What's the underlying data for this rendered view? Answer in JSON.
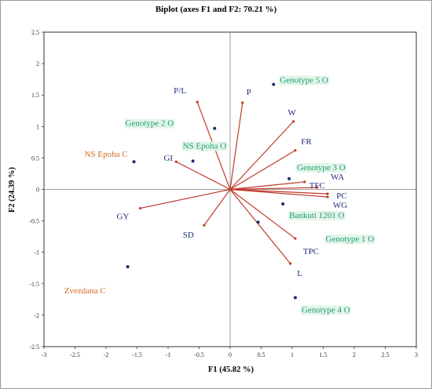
{
  "chart_data": {
    "type": "scatter",
    "title": "Biplot (axes F1 and F2: 70.21 %)",
    "xlabel": "F1 (45.82 %)",
    "ylabel": "F2 (24.39 %)",
    "xlim": [
      -3,
      3
    ],
    "ylim": [
      -2.5,
      2.5
    ],
    "xticks": [
      "-3",
      "-2.5",
      "-2",
      "-1.5",
      "-1",
      "-0.5",
      "0",
      "0.5",
      "1",
      "1.5",
      "2",
      "2.5",
      "3"
    ],
    "yticks": [
      "-2.5",
      "-2",
      "-1.5",
      "-1",
      "-0.5",
      "0",
      "0.5",
      "1",
      "1.5",
      "2",
      "2.5"
    ],
    "grid": false,
    "variables": [
      {
        "label": "P/L",
        "x": -0.53,
        "y": 1.39
      },
      {
        "label": "P",
        "x": 0.2,
        "y": 1.38
      },
      {
        "label": "W",
        "x": 1.02,
        "y": 1.08
      },
      {
        "label": "FR",
        "x": 1.05,
        "y": 0.62
      },
      {
        "label": "GI",
        "x": -0.87,
        "y": 0.44
      },
      {
        "label": "TFC",
        "x": 1.2,
        "y": 0.12
      },
      {
        "label": "WA",
        "x": 1.4,
        "y": 0.03
      },
      {
        "label": "PC",
        "x": 1.57,
        "y": -0.07
      },
      {
        "label": "WG",
        "x": 1.57,
        "y": -0.12
      },
      {
        "label": "GY",
        "x": -1.45,
        "y": -0.3
      },
      {
        "label": "SD",
        "x": -0.42,
        "y": -0.57
      },
      {
        "label": "TPC",
        "x": 1.05,
        "y": -0.78
      },
      {
        "label": "L",
        "x": 0.97,
        "y": -1.18
      }
    ],
    "observations": [
      {
        "label": "Genotype 5 O",
        "x": 0.7,
        "y": 1.67,
        "group": "O"
      },
      {
        "label": "Genotype 2 O",
        "x": -0.25,
        "y": 0.97,
        "group": "O"
      },
      {
        "label": "NS Epoha O",
        "x": -0.6,
        "y": 0.45,
        "group": "O"
      },
      {
        "label": "NS Epoha C",
        "x": -1.55,
        "y": 0.44,
        "group": "C"
      },
      {
        "label": "Genotype 3 O",
        "x": 0.95,
        "y": 0.17,
        "group": "O"
      },
      {
        "label": "Bankuti 1201 O",
        "x": 0.85,
        "y": -0.23,
        "group": "O"
      },
      {
        "label": "Genotype 1 O",
        "x": 0.45,
        "y": -0.52,
        "group": "O"
      },
      {
        "label": "Zvezdana C",
        "x": -1.65,
        "y": -1.23,
        "group": "C"
      },
      {
        "label": "Genotype 4 O",
        "x": 1.05,
        "y": -1.72,
        "group": "O"
      }
    ],
    "colors": {
      "vector": "#c0392b",
      "variable_text": "#1f2f7a",
      "point": "#1a2b6d",
      "group_O_text": "#1e9e6a",
      "group_O_bg": "#e3f5ea",
      "group_C_text": "#d2691e"
    }
  }
}
